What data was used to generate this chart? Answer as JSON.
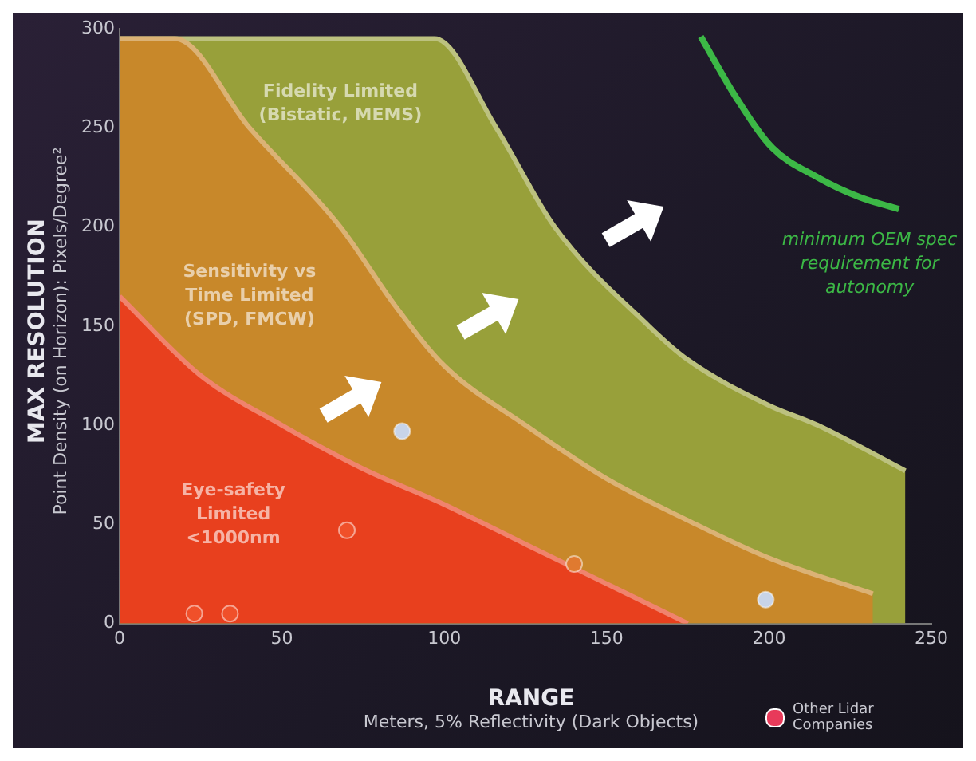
{
  "chart_data": {
    "type": "area",
    "xlabel": "RANGE\nMeters, 5% Reflectivity (Dark Objects)",
    "ylabel": "MAX RESOLUTION\nPoint Density (on Horizon): Pixels/Degree²",
    "xlim": [
      0,
      250
    ],
    "xticks": [
      0,
      50,
      100,
      150,
      200,
      250
    ],
    "ylim": [
      0,
      300
    ],
    "yticks": [
      0,
      50,
      100,
      150,
      200,
      250,
      300
    ],
    "grid": false,
    "legend": "bottom right",
    "series": [
      {
        "type": "scatter",
        "marker": "circle",
        "name": "Other Lidar Companies",
        "color": "#e83a5a",
        "x": [
          87,
          140,
          199,
          70,
          23,
          34
        ],
        "values": [
          97,
          30,
          12,
          47,
          5,
          5
        ],
        "colors": [
          "#c8d4e8",
          "#e07a30",
          "#c8d4e8",
          "#f0502a",
          "#f0502a",
          "#f0502a"
        ]
      },
      {
        "type": "line",
        "color": "#3cb846",
        "x": [
          179,
          190,
          201,
          215,
          228,
          240
        ],
        "values": [
          296,
          265,
          240,
          225,
          215,
          209
        ]
      },
      {
        "color": "#e8401e",
        "x": [
          0,
          25,
          50,
          75,
          100,
          125,
          150,
          175
        ],
        "values": [
          165,
          125,
          100,
          78,
          60,
          40,
          20,
          0
        ]
      },
      {
        "color": "#c8882a",
        "x": [
          0,
          17,
          40,
          68,
          85,
          100,
          125,
          150,
          175,
          200,
          232
        ],
        "values": [
          295,
          295,
          250,
          200,
          160,
          130,
          100,
          73,
          52,
          33,
          15
        ]
      },
      {
        "color": "#98a03a",
        "x": [
          0,
          97,
          116,
          134,
          163,
          175,
          200,
          215,
          242
        ],
        "values": [
          295,
          295,
          250,
          200,
          150,
          133,
          110,
          100,
          77
        ]
      }
    ],
    "annotations": [
      "Fidelity Limited\n(Bistatic, MEMS)",
      "Sensitivity vs\nTime Limited\n(SPD, FMCW)",
      "Eye-safety\nLimited\n<1000nm",
      "minimum OEM spec\nrequirement for\nautonomy"
    ]
  }
}
